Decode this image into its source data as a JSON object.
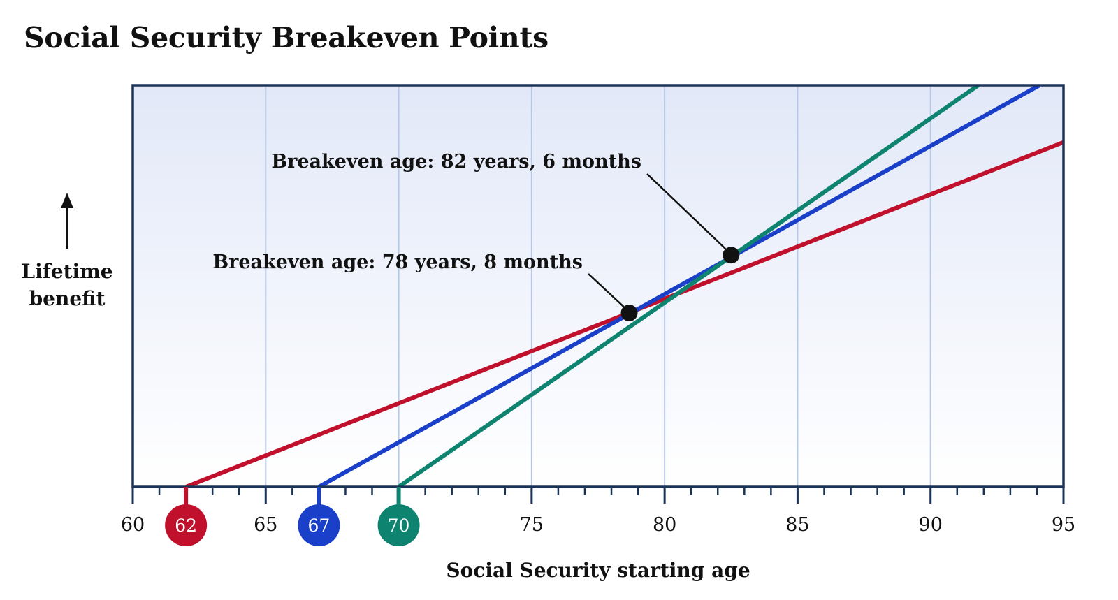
{
  "title": "Social Security Breakeven Points",
  "chart_data": {
    "type": "line",
    "xlabel": "Social Security starting age",
    "ylabel": [
      "Lifetime",
      "benefit"
    ],
    "xlim": [
      60,
      95
    ],
    "x_ticks": [
      "60",
      "65",
      "70",
      "75",
      "80",
      "85",
      "90",
      "95"
    ],
    "x_tick_values": [
      60,
      65,
      70,
      75,
      80,
      85,
      90,
      95
    ],
    "minor_tick_step": 1,
    "grid": true,
    "y_axis_numeric_labels": false,
    "start_markers": [
      {
        "value": 62,
        "label": "62",
        "color": "#c0102c"
      },
      {
        "value": 67,
        "label": "67",
        "color": "#1a3fc8"
      },
      {
        "value": 70,
        "label": "70",
        "color": "#0e8470"
      }
    ],
    "series": [
      {
        "start_age": 62,
        "color": "#c0102c",
        "points": [
          [
            62,
            0
          ],
          [
            95,
            0.858
          ]
        ]
      },
      {
        "start_age": 67,
        "color": "#1a3fc8",
        "points": [
          [
            67,
            0
          ],
          [
            94.1,
            1.0
          ]
        ]
      },
      {
        "start_age": 70,
        "color": "#0e8470",
        "points": [
          [
            70,
            0
          ],
          [
            91.8,
            1.0
          ]
        ]
      }
    ],
    "annotations": [
      {
        "text": "Breakeven age: 82 years, 6 months",
        "x": 82.5,
        "y": 0.577
      },
      {
        "text": "Breakeven age: 78 years, 8 months",
        "x": 78.67,
        "y": 0.433
      }
    ],
    "colors": {
      "frame": "#1c3358",
      "grid": "#b7c8e6",
      "bg_top": "#e2e8f8",
      "bg_bottom": "#ffffff"
    }
  }
}
